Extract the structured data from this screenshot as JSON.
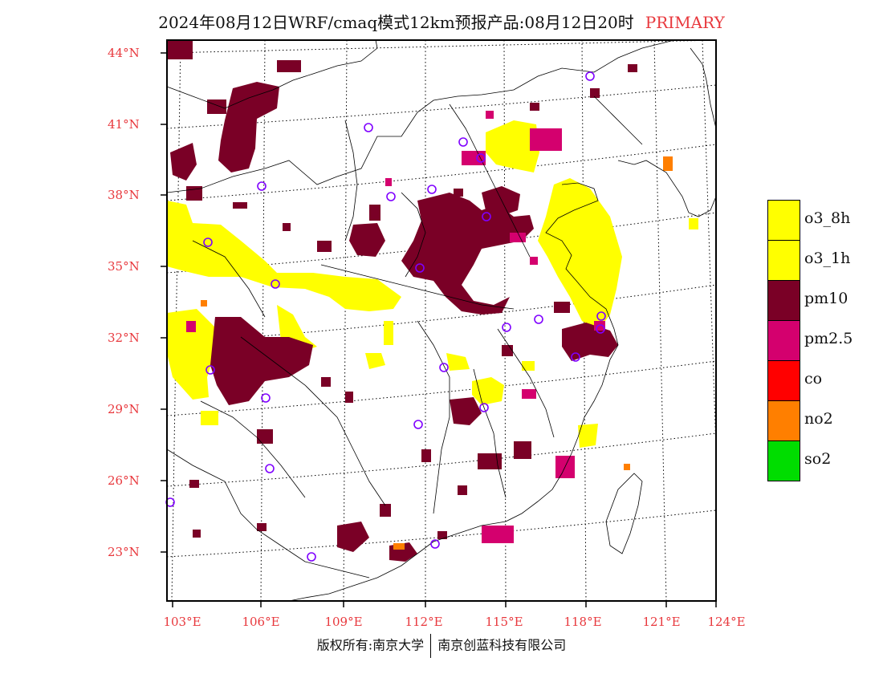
{
  "header": {
    "title": "2024年08月12日WRF/cmaq模式12km预报产品:08月12日20时",
    "tag": "PRIMARY"
  },
  "axes": {
    "lat_labels": [
      "44°N",
      "41°N",
      "38°N",
      "35°N",
      "32°N",
      "29°N",
      "26°N",
      "23°N"
    ],
    "lon_labels": [
      "103°E",
      "106°E",
      "109°E",
      "112°E",
      "115°E",
      "118°E",
      "121°E",
      "124°E"
    ]
  },
  "legend": {
    "items": [
      {
        "label": "o3_8h",
        "color": "#ffff00"
      },
      {
        "label": "o3_1h",
        "color": "#ffff00"
      },
      {
        "label": "pm10",
        "color": "#7a0026"
      },
      {
        "label": "pm2.5",
        "color": "#d4006e"
      },
      {
        "label": "co",
        "color": "#ff0000"
      },
      {
        "label": "no2",
        "color": "#ff7f00"
      },
      {
        "label": "so2",
        "color": "#00dd00"
      }
    ]
  },
  "footer": {
    "left": "版权所有:南京大学",
    "right": "南京创蓝科技有限公司"
  },
  "colors": {
    "axis_label": "#e8383d",
    "station_marker": "#7f00ff"
  }
}
